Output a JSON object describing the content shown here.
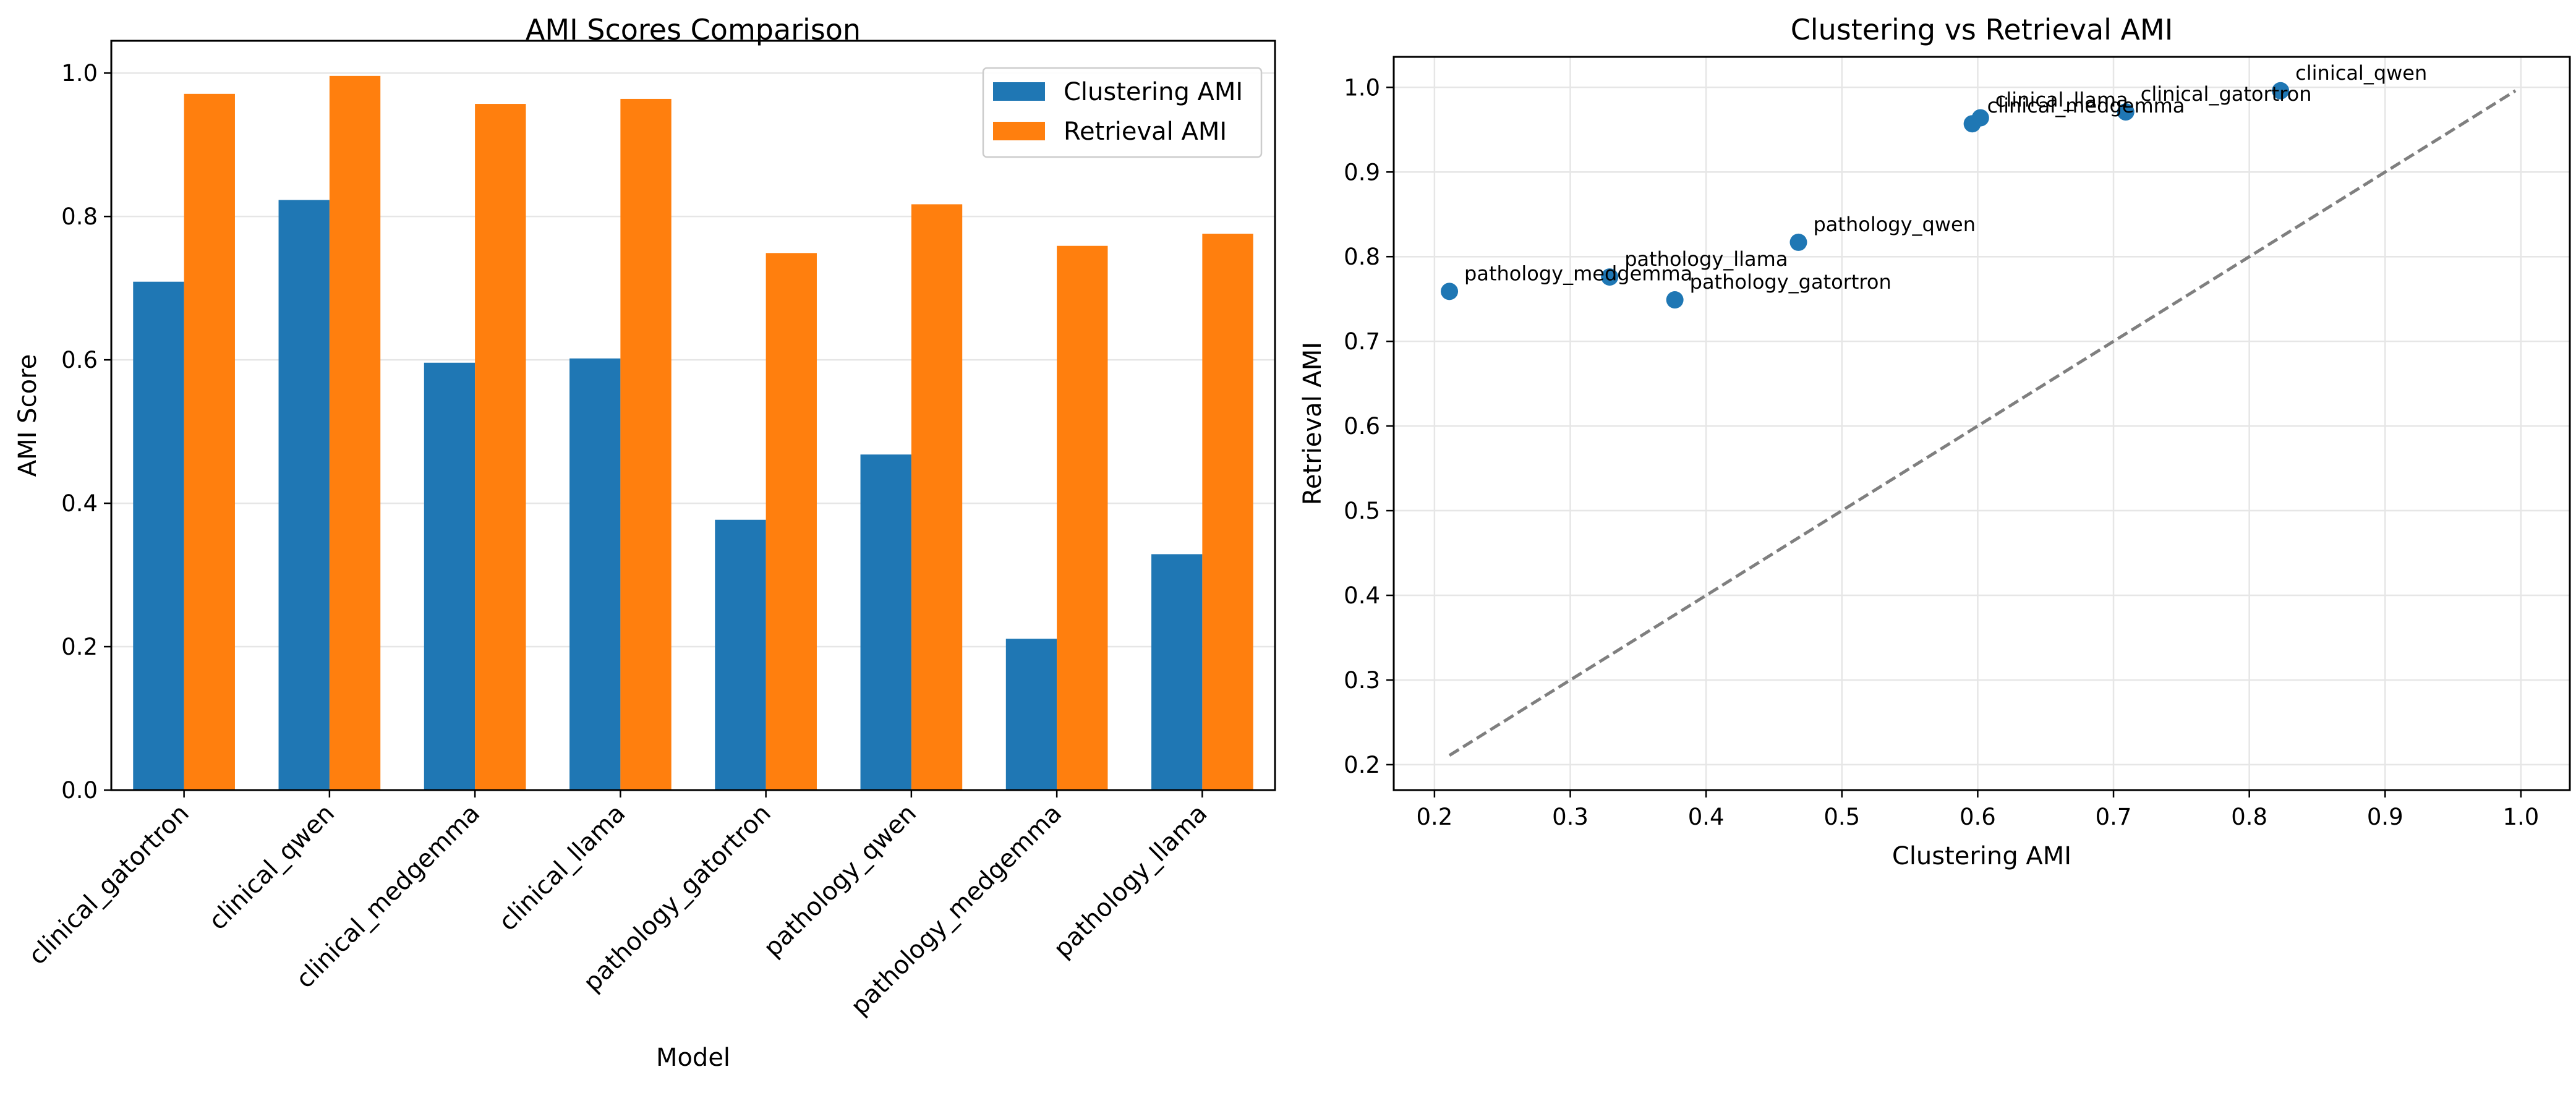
{
  "chart_data": [
    {
      "type": "bar",
      "title": "AMI Scores Comparison",
      "xlabel": "Model",
      "ylabel": "AMI Score",
      "categories": [
        "clinical_gatortron",
        "clinical_qwen",
        "clinical_medgemma",
        "clinical_llama",
        "pathology_gatortron",
        "pathology_qwen",
        "pathology_medgemma",
        "pathology_llama"
      ],
      "series": [
        {
          "name": "Clustering AMI",
          "color": "#1f77b4",
          "values": [
            0.709,
            0.823,
            0.596,
            0.602,
            0.377,
            0.468,
            0.211,
            0.329
          ]
        },
        {
          "name": "Retrieval AMI",
          "color": "#ff7f0e",
          "values": [
            0.971,
            0.996,
            0.957,
            0.964,
            0.749,
            0.817,
            0.759,
            0.776
          ]
        }
      ],
      "ylim": [
        0,
        1.045
      ],
      "yticks": [
        0.0,
        0.2,
        0.4,
        0.6,
        0.8,
        1.0
      ],
      "ytick_labels": [
        "0.0",
        "0.2",
        "0.4",
        "0.6",
        "0.8",
        "1.0"
      ],
      "grid": true,
      "legend": "top-right"
    },
    {
      "type": "scatter",
      "title": "Clustering vs Retrieval AMI",
      "xlabel": "Clustering AMI",
      "ylabel": "Retrieval AMI",
      "point_color": "#1f77b4",
      "reference_line": {
        "style": "dashed",
        "color": "#7f7f7f",
        "from": [
          0.211,
          0.211
        ],
        "to": [
          0.996,
          0.996
        ]
      },
      "points": [
        {
          "label": "clinical_gatortron",
          "x": 0.709,
          "y": 0.971
        },
        {
          "label": "clinical_qwen",
          "x": 0.823,
          "y": 0.996
        },
        {
          "label": "clinical_medgemma",
          "x": 0.596,
          "y": 0.957
        },
        {
          "label": "clinical_llama",
          "x": 0.602,
          "y": 0.964
        },
        {
          "label": "pathology_gatortron",
          "x": 0.377,
          "y": 0.749
        },
        {
          "label": "pathology_qwen",
          "x": 0.468,
          "y": 0.817
        },
        {
          "label": "pathology_medgemma",
          "x": 0.211,
          "y": 0.759
        },
        {
          "label": "pathology_llama",
          "x": 0.329,
          "y": 0.776
        }
      ],
      "xlim": [
        0.17,
        1.036
      ],
      "ylim": [
        0.17,
        1.036
      ],
      "xticks": [
        0.2,
        0.3,
        0.4,
        0.5,
        0.6,
        0.7,
        0.8,
        0.9,
        1.0
      ],
      "xtick_labels": [
        "0.2",
        "0.3",
        "0.4",
        "0.5",
        "0.6",
        "0.7",
        "0.8",
        "0.9",
        "1.0"
      ],
      "yticks": [
        0.2,
        0.3,
        0.4,
        0.5,
        0.6,
        0.7,
        0.8,
        0.9,
        1.0
      ],
      "ytick_labels": [
        "0.2",
        "0.3",
        "0.4",
        "0.5",
        "0.6",
        "0.7",
        "0.8",
        "0.9",
        "1.0"
      ],
      "grid": true
    }
  ]
}
